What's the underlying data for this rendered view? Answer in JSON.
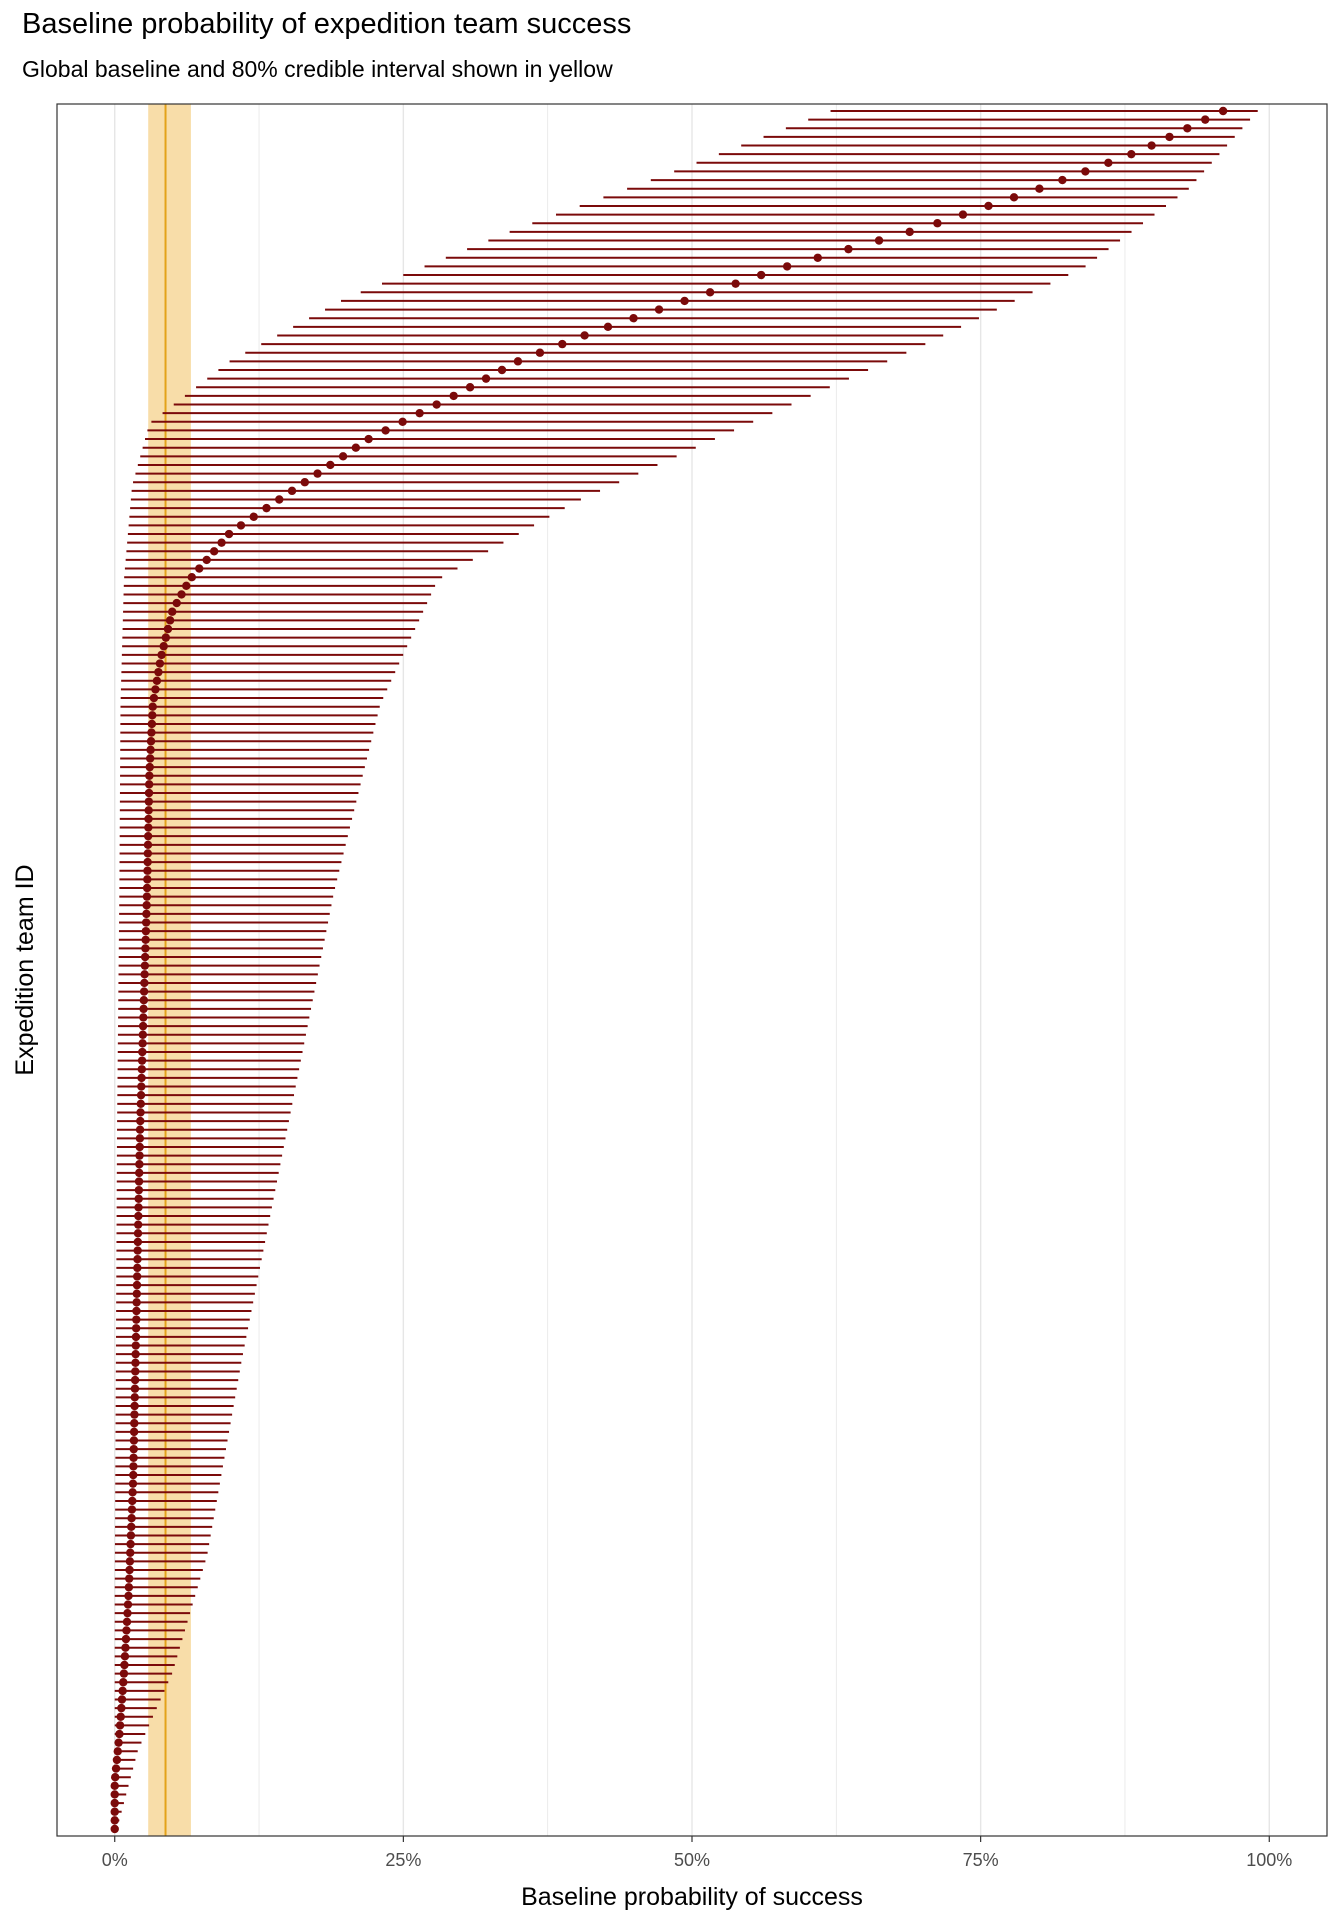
{
  "chart_data": {
    "type": "scatter",
    "title": "Baseline probability of expedition team success",
    "subtitle": "Global baseline and 80% credible interval shown in yellow",
    "xlabel": "Baseline probability of success",
    "ylabel": "Expedition team ID",
    "xlim": [
      -0.05,
      1.05
    ],
    "x_ticks": [
      0,
      0.25,
      0.5,
      0.75,
      1.0
    ],
    "x_tick_labels": [
      "0%",
      "25%",
      "50%",
      "75%",
      "100%"
    ],
    "grid": "vertical",
    "legend": "none",
    "baseline": {
      "estimate": 0.044,
      "interval": [
        0.029,
        0.066
      ]
    },
    "series": [
      {
        "mark": "point-interval",
        "n_teams": 200,
        "median_anchors": [
          [
            0,
            0.0
          ],
          [
            6,
            0.0
          ],
          [
            12,
            0.004
          ],
          [
            20,
            0.008
          ],
          [
            30,
            0.012
          ],
          [
            45,
            0.016
          ],
          [
            60,
            0.018
          ],
          [
            75,
            0.02
          ],
          [
            90,
            0.022
          ],
          [
            105,
            0.025
          ],
          [
            120,
            0.028
          ],
          [
            135,
            0.03
          ],
          [
            144,
            0.033
          ],
          [
            150,
            0.04
          ],
          [
            156,
            0.05
          ],
          [
            160,
            0.065
          ],
          [
            166,
            0.1
          ],
          [
            172,
            0.16
          ],
          [
            178,
            0.22
          ],
          [
            184,
            0.3
          ],
          [
            188,
            0.35
          ],
          [
            192,
            0.42
          ],
          [
            196,
            0.5
          ],
          [
            200,
            0.58
          ],
          [
            205,
            0.7
          ],
          [
            210,
            0.8
          ],
          [
            215,
            0.89
          ],
          [
            220,
            0.96
          ]
        ],
        "lower_anchors": [
          [
            0,
            0.0
          ],
          [
            30,
            0.0
          ],
          [
            60,
            0.001
          ],
          [
            90,
            0.002
          ],
          [
            120,
            0.004
          ],
          [
            144,
            0.005
          ],
          [
            160,
            0.008
          ],
          [
            172,
            0.015
          ],
          [
            180,
            0.03
          ],
          [
            188,
            0.1
          ],
          [
            196,
            0.2
          ],
          [
            205,
            0.35
          ],
          [
            212,
            0.48
          ],
          [
            220,
            0.62
          ]
        ],
        "upper_anchors": [
          [
            0,
            0.002
          ],
          [
            10,
            0.02
          ],
          [
            20,
            0.05
          ],
          [
            35,
            0.08
          ],
          [
            60,
            0.11
          ],
          [
            90,
            0.15
          ],
          [
            120,
            0.19
          ],
          [
            144,
            0.23
          ],
          [
            160,
            0.28
          ],
          [
            170,
            0.4
          ],
          [
            180,
            0.55
          ],
          [
            190,
            0.7
          ],
          [
            200,
            0.84
          ],
          [
            210,
            0.93
          ],
          [
            220,
            0.99
          ]
        ],
        "color": "#7b0a0a"
      }
    ]
  },
  "colors": {
    "point": "#7b0a0a",
    "interval": "#7b0a0a",
    "band": "#f7d79a",
    "baseline_line": "#e3a21a",
    "grid": "#e6e6e6",
    "panel_border": "#333333"
  }
}
